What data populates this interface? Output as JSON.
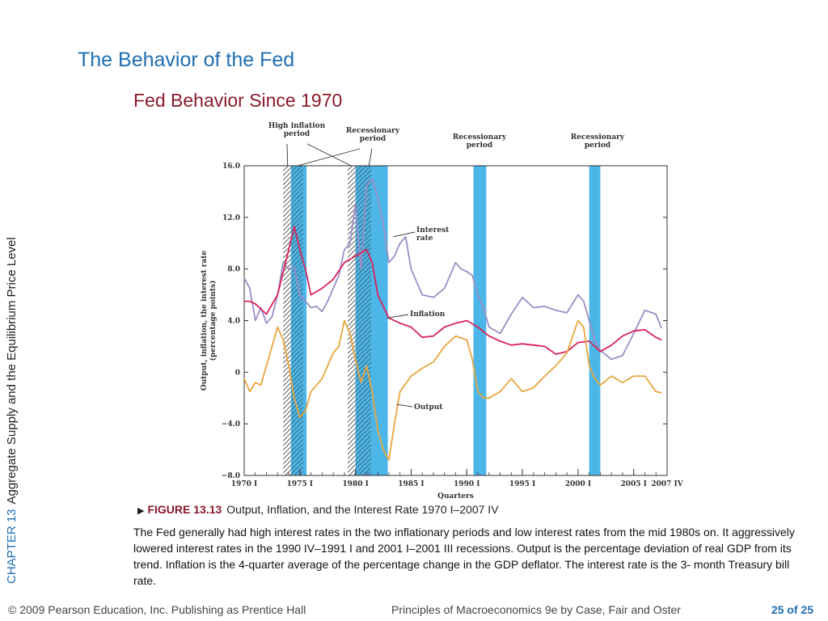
{
  "slide": {
    "title": "The Behavior of the Fed",
    "subtitle": "Fed Behavior Since 1970",
    "chapter": "CHAPTER 13",
    "chapter_title": "Aggregate Supply and the Equilibrium Price Level"
  },
  "figure": {
    "marker": "▶",
    "number": "FIGURE 13.13",
    "title": "Output, Inflation, and the Interest Rate 1970 I–2007 IV",
    "caption": "The Fed generally had high interest rates in the two inflationary periods and low interest rates from the mid 1980s on. It aggressively lowered interest rates in the 1990 IV–1991 I and 2001 I–2001 III recessions. Output is the percentage deviation of real GDP from its trend. Inflation is the 4-quarter average of the percentage change in the GDP deflator. The interest rate is the 3- month Treasury bill rate."
  },
  "footer": {
    "copyright": "© 2009 Pearson Education, Inc. Publishing as Prentice Hall",
    "book": "Principles of Macroeconomics 9e by Case, Fair and Oster",
    "page": "25 of 25"
  },
  "chart_data": {
    "type": "line",
    "xlabel": "Quarters",
    "ylabel": "Output, inflation, the interest rate (percentage points)",
    "xlim": [
      1970.0,
      2008.0
    ],
    "ylim": [
      -8.0,
      16.0
    ],
    "ytick_values": [
      -8,
      -4,
      0,
      4,
      8,
      12,
      16
    ],
    "ytick_labels": [
      "−8.0",
      "−4.0",
      "0",
      "4.0",
      "8.0",
      "12.0",
      "16.0"
    ],
    "xticks": [
      {
        "x": 1970.0,
        "label": "1970 I"
      },
      {
        "x": 1975.0,
        "label": "1975 I"
      },
      {
        "x": 1980.0,
        "label": "1980 I"
      },
      {
        "x": 1985.0,
        "label": "1985 I"
      },
      {
        "x": 1990.0,
        "label": "1990 I"
      },
      {
        "x": 1995.0,
        "label": "1995 I"
      },
      {
        "x": 2000.0,
        "label": "2000 I"
      },
      {
        "x": 2005.0,
        "label": "2005 I"
      },
      {
        "x": 2008.0,
        "label": "2007 IV"
      }
    ],
    "colors": {
      "interest": "#9b8ec4",
      "inflation": "#d8245a",
      "output": "#e8a63e",
      "recession": "#4cb6e8",
      "axis": "#333333"
    },
    "high_inflation_periods": [
      [
        1973.5,
        1974.2
      ],
      [
        1979.3,
        1980.0
      ]
    ],
    "recession_periods": [
      [
        1974.2,
        1975.6
      ],
      [
        1980.0,
        1982.9
      ],
      [
        1990.6,
        1991.75
      ],
      [
        2001.0,
        2002.0
      ]
    ],
    "annotations": {
      "high_inflation": "High inflation\nperiod",
      "recessionary": "Recessionary\nperiod",
      "interest": "Interest\nrate",
      "inflation": "Inflation",
      "output": "Output"
    },
    "series": [
      {
        "name": "Interest rate",
        "x": [
          1970.0,
          1970.5,
          1971.0,
          1971.5,
          1972.0,
          1972.5,
          1973.0,
          1973.5,
          1974.0,
          1974.5,
          1975.0,
          1975.5,
          1976.0,
          1976.5,
          1977.0,
          1977.5,
          1978.0,
          1978.5,
          1979.0,
          1979.5,
          1980.0,
          1980.5,
          1981.0,
          1981.5,
          1982.0,
          1982.5,
          1983.0,
          1983.5,
          1984.0,
          1984.5,
          1985.0,
          1986.0,
          1987.0,
          1988.0,
          1989.0,
          1989.5,
          1990.0,
          1990.5,
          1991.0,
          1991.5,
          1992.0,
          1993.0,
          1994.0,
          1995.0,
          1996.0,
          1997.0,
          1998.0,
          1999.0,
          2000.0,
          2000.5,
          2001.0,
          2001.5,
          2002.0,
          2003.0,
          2004.0,
          2005.0,
          2006.0,
          2007.0,
          2007.5
        ],
        "y": [
          7.3,
          6.5,
          4.0,
          5.0,
          3.8,
          4.3,
          6.0,
          8.5,
          8.0,
          8.2,
          6.0,
          5.5,
          5.0,
          5.1,
          4.7,
          5.5,
          6.5,
          7.5,
          9.5,
          10.0,
          13.0,
          8.0,
          14.5,
          15.0,
          13.5,
          11.5,
          8.5,
          9.0,
          10.0,
          10.5,
          8.0,
          6.0,
          5.8,
          6.5,
          8.5,
          8.0,
          7.8,
          7.5,
          6.0,
          5.0,
          3.5,
          3.0,
          4.5,
          5.8,
          5.0,
          5.1,
          4.8,
          4.6,
          6.0,
          5.5,
          4.0,
          2.5,
          1.7,
          1.0,
          1.3,
          3.0,
          4.8,
          4.5,
          3.4
        ]
      },
      {
        "name": "Inflation",
        "x": [
          1970.0,
          1970.5,
          1971.0,
          1972.0,
          1973.0,
          1974.0,
          1974.5,
          1975.0,
          1975.5,
          1976.0,
          1977.0,
          1978.0,
          1979.0,
          1980.0,
          1981.0,
          1981.5,
          1982.0,
          1983.0,
          1984.0,
          1985.0,
          1986.0,
          1987.0,
          1988.0,
          1989.0,
          1990.0,
          1991.0,
          1992.0,
          1993.0,
          1994.0,
          1995.0,
          1996.0,
          1997.0,
          1998.0,
          1999.0,
          2000.0,
          2001.0,
          2002.0,
          2003.0,
          2004.0,
          2005.0,
          2006.0,
          2007.0,
          2007.5
        ],
        "y": [
          5.5,
          5.5,
          5.3,
          4.5,
          6.0,
          9.5,
          11.3,
          9.5,
          8.0,
          6.0,
          6.5,
          7.2,
          8.5,
          9.0,
          9.5,
          8.5,
          6.0,
          4.2,
          3.8,
          3.5,
          2.7,
          2.8,
          3.5,
          3.8,
          4.0,
          3.5,
          2.8,
          2.4,
          2.1,
          2.2,
          2.1,
          2.0,
          1.4,
          1.6,
          2.3,
          2.4,
          1.6,
          2.1,
          2.8,
          3.2,
          3.3,
          2.7,
          2.5
        ]
      },
      {
        "name": "Output",
        "x": [
          1970.0,
          1970.5,
          1971.0,
          1971.5,
          1972.0,
          1972.5,
          1973.0,
          1973.5,
          1974.0,
          1974.5,
          1975.0,
          1975.5,
          1976.0,
          1976.5,
          1977.0,
          1978.0,
          1978.5,
          1979.0,
          1979.5,
          1980.0,
          1980.5,
          1981.0,
          1981.5,
          1982.0,
          1982.5,
          1983.0,
          1983.5,
          1984.0,
          1985.0,
          1986.0,
          1987.0,
          1988.0,
          1989.0,
          1990.0,
          1990.5,
          1991.0,
          1991.5,
          1992.0,
          1993.0,
          1994.0,
          1995.0,
          1996.0,
          1997.0,
          1998.0,
          1999.0,
          2000.0,
          2000.5,
          2001.0,
          2001.5,
          2002.0,
          2003.0,
          2004.0,
          2005.0,
          2006.0,
          2007.0,
          2007.5
        ],
        "y": [
          -0.5,
          -1.5,
          -0.8,
          -1.0,
          0.5,
          2.0,
          3.5,
          2.5,
          0.5,
          -2.0,
          -3.5,
          -3.0,
          -1.5,
          -1.0,
          -0.5,
          1.5,
          2.0,
          4.0,
          3.0,
          1.0,
          -0.8,
          0.5,
          -1.5,
          -4.5,
          -6.0,
          -6.8,
          -4.0,
          -1.5,
          -0.3,
          0.3,
          0.8,
          2.0,
          2.8,
          2.5,
          1.0,
          -1.5,
          -2.0,
          -2.0,
          -1.5,
          -0.5,
          -1.5,
          -1.2,
          -0.3,
          0.5,
          1.5,
          4.0,
          3.5,
          0.5,
          -0.5,
          -1.0,
          -0.3,
          -0.8,
          -0.3,
          -0.3,
          -1.5,
          -1.6
        ]
      }
    ]
  }
}
